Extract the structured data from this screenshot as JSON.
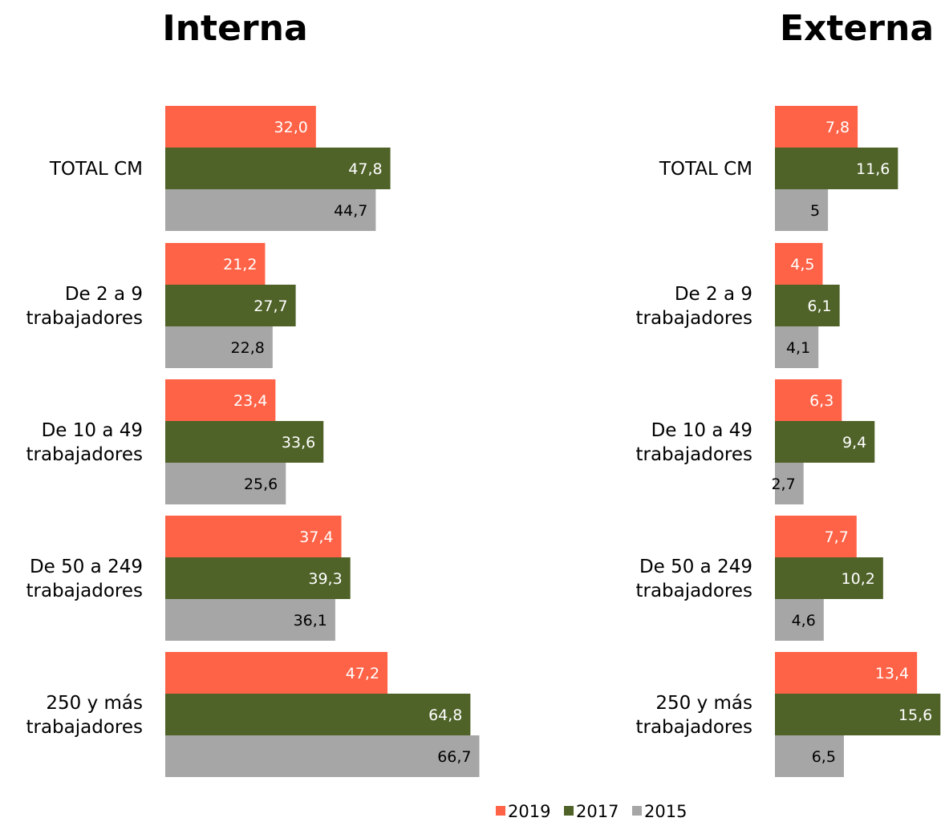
{
  "legend": [
    {
      "label": "2019",
      "color": "#FF6347"
    },
    {
      "label": "2017",
      "color": "#4F6228"
    },
    {
      "label": "2015",
      "color": "#A6A6A6"
    }
  ],
  "chart_data": [
    {
      "type": "bar",
      "orientation": "horizontal",
      "title": "Interna",
      "categories": [
        [
          "TOTAL CM"
        ],
        [
          "De 2 a 9",
          "trabajadores"
        ],
        [
          "De 10 a 49",
          "trabajadores"
        ],
        [
          "De 50 a 249",
          "trabajadores"
        ],
        [
          "250 y más",
          "trabajadores"
        ]
      ],
      "series": [
        {
          "name": "2019",
          "values": [
            32.0,
            21.2,
            23.4,
            37.4,
            47.2
          ],
          "labels": [
            "32,0",
            "21,2",
            "23,4",
            "37,4",
            "47,2"
          ]
        },
        {
          "name": "2017",
          "values": [
            47.8,
            27.7,
            33.6,
            39.3,
            64.8
          ],
          "labels": [
            "47,8",
            "27,7",
            "33,6",
            "39,3",
            "64,8"
          ]
        },
        {
          "name": "2015",
          "values": [
            44.7,
            22.8,
            25.6,
            36.1,
            66.7
          ],
          "labels": [
            "44,7",
            "22,8",
            "25,6",
            "36,1",
            "66,7"
          ]
        }
      ],
      "legend_position": "bottom"
    },
    {
      "type": "bar",
      "orientation": "horizontal",
      "title": "Externa",
      "categories": [
        [
          "TOTAL CM"
        ],
        [
          "De 2 a 9",
          "trabajadores"
        ],
        [
          "De 10 a 49",
          "trabajadores"
        ],
        [
          "De 50 a 249",
          "trabajadores"
        ],
        [
          "250 y más",
          "trabajadores"
        ]
      ],
      "series": [
        {
          "name": "2019",
          "values": [
            7.8,
            4.5,
            6.3,
            7.7,
            13.4
          ],
          "labels": [
            "7,8",
            "4,5",
            "6,3",
            "7,7",
            "13,4"
          ]
        },
        {
          "name": "2017",
          "values": [
            11.6,
            6.1,
            9.4,
            10.2,
            15.6
          ],
          "labels": [
            "11,6",
            "6,1",
            "9,4",
            "10,2",
            "15,6"
          ]
        },
        {
          "name": "2015",
          "values": [
            5,
            4.1,
            2.7,
            4.6,
            6.5
          ],
          "labels": [
            "5",
            "4,1",
            "2,7",
            "4,6",
            "6,5"
          ]
        }
      ],
      "legend_position": "bottom"
    }
  ]
}
